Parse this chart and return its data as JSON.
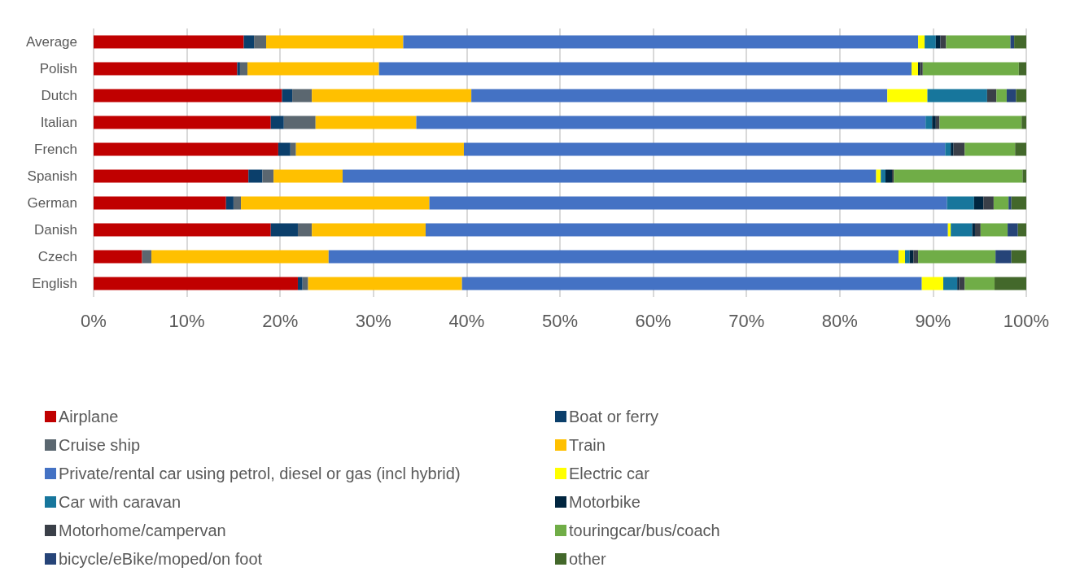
{
  "chart_data": {
    "type": "bar",
    "orientation": "horizontal",
    "stacked": true,
    "categories": [
      "Average",
      "Polish",
      "Dutch",
      "Italian",
      "French",
      "Spanish",
      "German",
      "Danish",
      "Czech",
      "English"
    ],
    "series": [
      {
        "name": "Airplane",
        "color": "#c00000",
        "values": [
          16.1,
          15.4,
          20.2,
          19.0,
          19.8,
          16.6,
          14.2,
          19.0,
          5.2,
          21.9
        ]
      },
      {
        "name": "Boat or ferry",
        "color": "#0b3f6b",
        "values": [
          1.1,
          0.3,
          1.1,
          1.4,
          1.3,
          1.5,
          0.8,
          2.9,
          0,
          0.5
        ]
      },
      {
        "name": "Cruise ship",
        "color": "#5b6770",
        "values": [
          1.3,
          0.8,
          2.1,
          3.4,
          0.6,
          1.2,
          0.8,
          1.5,
          1.0,
          0.6
        ]
      },
      {
        "name": "Train",
        "color": "#ffc000",
        "values": [
          14.7,
          14.1,
          17.1,
          10.8,
          18.0,
          7.4,
          20.2,
          12.2,
          19.0,
          16.5
        ]
      },
      {
        "name": "Private/rental car using petrol, diesel or gas (incl hybrid)",
        "color": "#4472c4",
        "values": [
          55.2,
          57.1,
          44.6,
          54.6,
          51.6,
          57.2,
          55.5,
          56.0,
          61.1,
          49.3
        ]
      },
      {
        "name": "Electric car",
        "color": "#ffff00",
        "values": [
          0.7,
          0.7,
          4.3,
          0,
          0,
          0.5,
          0,
          0.3,
          0.7,
          2.3
        ]
      },
      {
        "name": "Car with caravan",
        "color": "#17769c",
        "values": [
          1.2,
          0,
          6.4,
          0.7,
          0.6,
          0.5,
          2.9,
          2.3,
          0.5,
          1.5
        ]
      },
      {
        "name": "Motorbike",
        "color": "#00253f",
        "values": [
          0.5,
          0.2,
          0,
          0.4,
          0.3,
          0.7,
          1.0,
          0.3,
          0.4,
          0.2
        ]
      },
      {
        "name": "Motorhome/campervan",
        "color": "#3a3f48",
        "values": [
          0.6,
          0.3,
          1.0,
          0.4,
          1.2,
          0.2,
          1.1,
          0.6,
          0.5,
          0.6
        ]
      },
      {
        "name": "touringcar/bus/coach",
        "color": "#70ad47",
        "values": [
          6.9,
          10.3,
          1.1,
          8.8,
          5.4,
          13.8,
          1.6,
          2.9,
          8.3,
          3.2
        ]
      },
      {
        "name": "bicycle/eBike/moped/on foot",
        "color": "#264478",
        "values": [
          0.4,
          0,
          1.0,
          0,
          0,
          0,
          0.3,
          1.1,
          1.7,
          0
        ]
      },
      {
        "name": "other",
        "color": "#43682b",
        "values": [
          1.3,
          0.8,
          1.1,
          0.5,
          1.2,
          0.4,
          1.6,
          0.9,
          1.6,
          3.4
        ]
      }
    ],
    "xlim": [
      0,
      100
    ],
    "xticks": [
      {
        "value": 0,
        "label": "0%"
      },
      {
        "value": 10,
        "label": "10%"
      },
      {
        "value": 20,
        "label": "20%"
      },
      {
        "value": 30,
        "label": "30%"
      },
      {
        "value": 40,
        "label": "40%"
      },
      {
        "value": 50,
        "label": "50%"
      },
      {
        "value": 60,
        "label": "60%"
      },
      {
        "value": 70,
        "label": "70%"
      },
      {
        "value": 80,
        "label": "80%"
      },
      {
        "value": 90,
        "label": "90%"
      },
      {
        "value": 100,
        "label": "100%"
      }
    ],
    "grid": "x",
    "legend": "bottom"
  }
}
